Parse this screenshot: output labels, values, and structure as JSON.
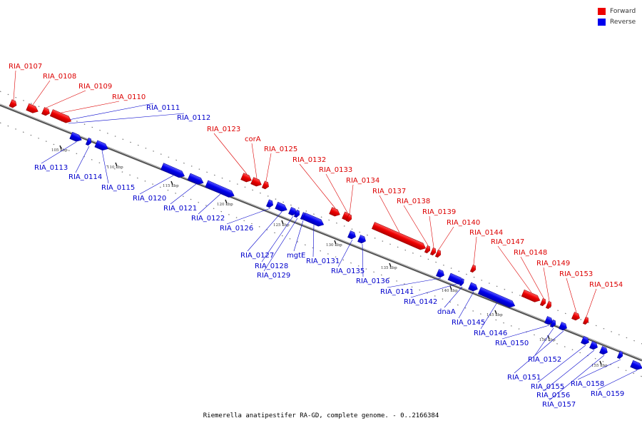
{
  "legend": {
    "forward_label": "Forward",
    "reverse_label": "Reverse",
    "forward_color": "#ee0000",
    "reverse_color": "#0000ee"
  },
  "footer": "Riemerella anatipestifer RA-GD, complete genome. - 0..2166384",
  "ticks": [
    "105 kbp",
    "110 kbp",
    "115 kbp",
    "120 kbp",
    "125 kbp",
    "130 kbp",
    "135 kbp",
    "140 kbp",
    "145 kbp",
    "150 kbp",
    "155 kbp"
  ],
  "forward_genes": [
    "RIA_0107",
    "RIA_0108",
    "RIA_0109",
    "RIA_0110",
    "RIA_0123",
    "corA",
    "RIA_0125",
    "RIA_0132",
    "RIA_0133",
    "RIA_0134",
    "RIA_0137",
    "RIA_0138",
    "RIA_0139",
    "RIA_0140",
    "RIA_0144",
    "RIA_0147",
    "RIA_0148",
    "RIA_0149",
    "RIA_0153",
    "RIA_0154"
  ],
  "reverse_genes": [
    "RIA_0111",
    "RIA_0112",
    "RIA_0113",
    "RIA_0114",
    "RIA_0115",
    "RIA_0120",
    "RIA_0121",
    "RIA_0122",
    "RIA_0126",
    "RIA_0127",
    "RIA_0128",
    "RIA_0129",
    "mgtE",
    "RIA_0131",
    "RIA_0135",
    "RIA_0136",
    "RIA_0141",
    "RIA_0142",
    "dnaA",
    "RIA_0145",
    "RIA_0146",
    "RIA_0150",
    "RIA_0151",
    "RIA_0152",
    "RIA_0155",
    "RIA_0156",
    "RIA_0157",
    "RIA_0158",
    "RIA_0159"
  ]
}
